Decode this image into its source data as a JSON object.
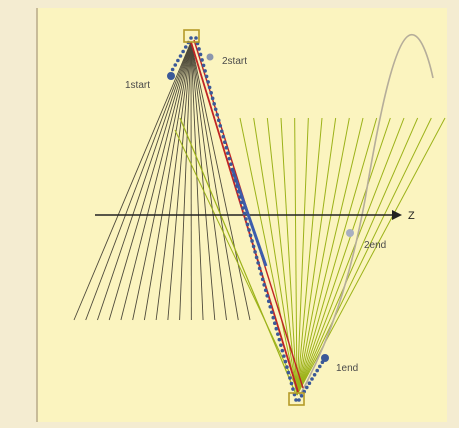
{
  "labels": {
    "start1": "1start",
    "start2": "2start",
    "end1": "1end",
    "end2": "2end",
    "axis": "Z"
  },
  "colors": {
    "background": "#f4ecd1",
    "panel": "#fbf4bf",
    "rule": "#b8a988",
    "dark_lines": "#4f4b3b",
    "green_lines": "#9cb219",
    "red_line": "#c02424",
    "blue_line": "#3c5dad",
    "dot_marker": "#3b5998",
    "box_marker": "#b59a28",
    "sine_curve": "#b5ad9a"
  }
}
